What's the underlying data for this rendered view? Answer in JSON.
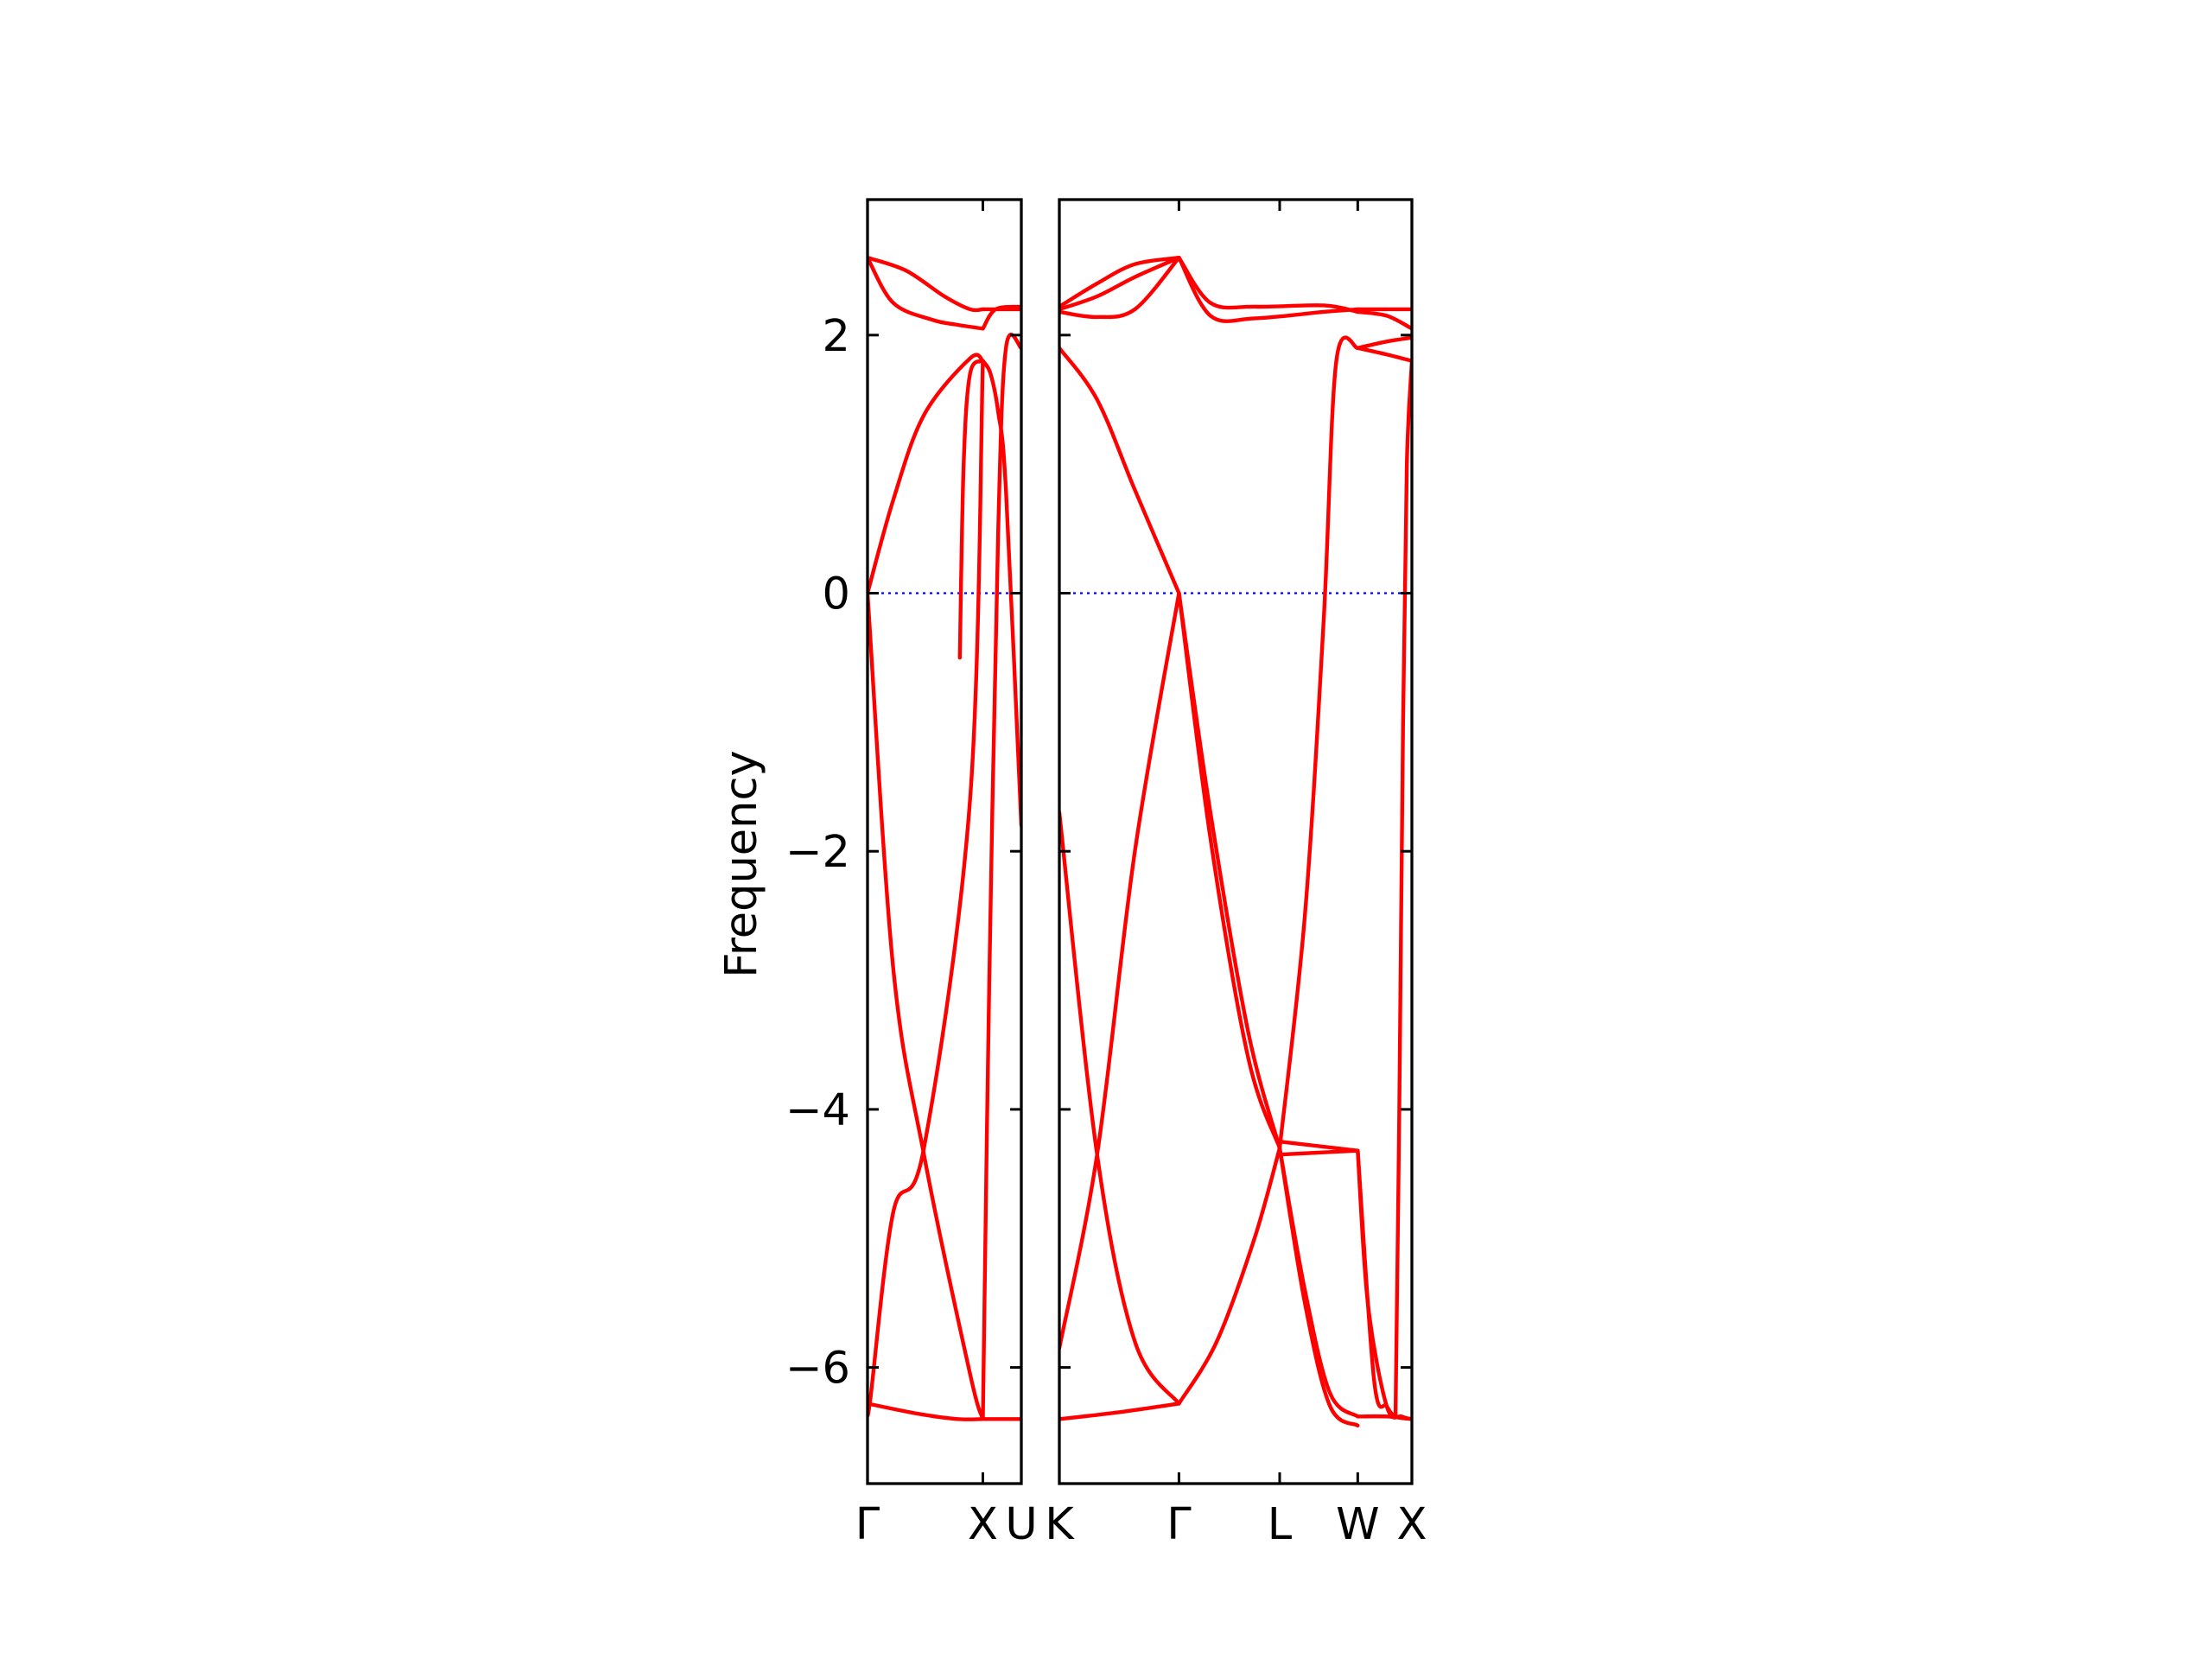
{
  "chart_data": {
    "type": "line",
    "title": "",
    "ylabel": "Frequency",
    "xlabel": "",
    "ylim": [
      -6.9,
      3.05
    ],
    "yticks": [
      -6,
      -4,
      -2,
      0,
      2
    ],
    "ytick_labels": [
      "−6",
      "−4",
      "−2",
      "0",
      "2"
    ],
    "grid": false,
    "colors": {
      "band": "#ff0000",
      "zero_line": "#0000ff",
      "frame": "#000000"
    },
    "panels": [
      {
        "xlim": [
          0,
          1.2
        ],
        "ticks": [
          {
            "x": 0,
            "label": "Γ"
          },
          {
            "x": 0.9,
            "label": "X"
          },
          {
            "x": 1.2,
            "label": "U"
          }
        ],
        "bands": [
          {
            "x": [
              0,
              0.2,
              0.44,
              0.8,
              0.9
            ],
            "y": [
              0,
              0.72,
              1.38,
              1.82,
              1.8
            ]
          },
          {
            "x": [
              0,
              0.2,
              0.44,
              0.8,
              0.9
            ],
            "y": [
              0,
              -2.9,
              -4.35,
              -6.05,
              -6.4
            ]
          },
          {
            "x": [
              0,
              0.02,
              0.2,
              0.44,
              0.8,
              0.9
            ],
            "y": [
              -6.28,
              -6.26,
              -4.8,
              -4.3,
              -1.6,
              1.8
            ]
          },
          {
            "x": [
              0,
              0.4,
              0.7,
              0.9
            ],
            "y": [
              -6.28,
              -6.36,
              -6.4,
              -6.4
            ]
          },
          {
            "x": [
              0,
              0.2,
              0.5,
              0.7,
              0.9
            ],
            "y": [
              2.6,
              2.25,
              2.12,
              2.08,
              2.05
            ]
          },
          {
            "x": [
              0,
              0.3,
              0.6,
              0.8,
              0.9
            ],
            "y": [
              2.6,
              2.5,
              2.3,
              2.2,
              2.2
            ]
          },
          {
            "x": [
              0.72,
              0.75,
              0.8,
              0.9
            ],
            "y": [
              -0.5,
              1.0,
              1.7,
              1.8
            ]
          },
          {
            "x": [
              0.9,
              0.96,
              1.02,
              1.08,
              1.2
            ],
            "y": [
              1.8,
              1.7,
              1.4,
              0.8,
              -1.8
            ]
          },
          {
            "x": [
              0.9,
              0.95,
              1.02,
              1.08,
              1.2
            ],
            "y": [
              -6.4,
              -3.0,
              0.5,
              1.9,
              1.9
            ]
          },
          {
            "x": [
              0.9,
              1.2
            ],
            "y": [
              -6.4,
              -6.4
            ]
          },
          {
            "x": [
              0.9,
              1.0,
              1.2
            ],
            "y": [
              2.05,
              2.2,
              2.22
            ]
          },
          {
            "x": [
              0.9,
              1.0,
              1.2
            ],
            "y": [
              2.2,
              2.2,
              2.2
            ]
          }
        ]
      },
      {
        "xlim": [
          0,
          2.8
        ],
        "ticks": [
          {
            "x": 0,
            "label": "K"
          },
          {
            "x": 0.95,
            "label": "Γ"
          },
          {
            "x": 1.75,
            "label": "L"
          },
          {
            "x": 2.37,
            "label": "W"
          },
          {
            "x": 2.8,
            "label": "X"
          }
        ],
        "bands": [
          {
            "x": [
              0,
              0.3,
              0.6,
              0.95
            ],
            "y": [
              1.9,
              1.5,
              0.8,
              0.0
            ]
          },
          {
            "x": [
              0,
              0.3,
              0.6,
              0.95
            ],
            "y": [
              -5.85,
              -4.35,
              -2.0,
              0.0
            ]
          },
          {
            "x": [
              0,
              0.3,
              0.6,
              0.95
            ],
            "y": [
              -1.7,
              -4.35,
              -5.8,
              -6.28
            ]
          },
          {
            "x": [
              0,
              0.45,
              0.95
            ],
            "y": [
              -6.4,
              -6.35,
              -6.28
            ]
          },
          {
            "x": [
              0.95,
              1.2,
              1.5,
              1.75
            ],
            "y": [
              0.0,
              -1.7,
              -3.4,
              -4.3
            ]
          },
          {
            "x": [
              0.95,
              1.2,
              1.5,
              1.75
            ],
            "y": [
              0.0,
              -1.9,
              -3.6,
              -4.3
            ]
          },
          {
            "x": [
              0.95,
              1.25,
              1.55,
              1.75
            ],
            "y": [
              -6.28,
              -5.8,
              -5.0,
              -4.3
            ]
          },
          {
            "x": [
              0,
              0.3,
              0.6,
              0.95
            ],
            "y": [
              2.18,
              2.14,
              2.2,
              2.6
            ]
          },
          {
            "x": [
              0,
              0.3,
              0.6,
              0.95
            ],
            "y": [
              2.2,
              2.3,
              2.45,
              2.6
            ]
          },
          {
            "x": [
              0,
              0.3,
              0.6,
              0.95
            ],
            "y": [
              2.22,
              2.4,
              2.55,
              2.6
            ]
          },
          {
            "x": [
              0.95,
              1.2,
              1.55,
              2.1,
              2.37
            ],
            "y": [
              2.6,
              2.15,
              2.13,
              2.18,
              2.2
            ]
          },
          {
            "x": [
              0.95,
              1.2,
              1.55,
              2.1,
              2.37
            ],
            "y": [
              2.6,
              2.25,
              2.22,
              2.23,
              2.18
            ]
          },
          {
            "x": [
              1.75,
              2.37
            ],
            "y": [
              -4.25,
              -4.32
            ]
          },
          {
            "x": [
              1.75,
              2.37
            ],
            "y": [
              -4.35,
              -4.32
            ]
          },
          {
            "x": [
              1.75,
              1.95,
              2.15,
              2.37
            ],
            "y": [
              -4.3,
              -5.4,
              -6.2,
              -6.38
            ]
          },
          {
            "x": [
              1.75,
              1.95,
              2.15,
              2.37
            ],
            "y": [
              -4.3,
              -5.5,
              -6.3,
              -6.45
            ]
          },
          {
            "x": [
              1.75,
              1.95,
              2.1,
              2.2,
              2.37
            ],
            "y": [
              -4.3,
              -2.5,
              -0.2,
              1.8,
              1.9
            ]
          },
          {
            "x": [
              2.37,
              2.6,
              2.8
            ],
            "y": [
              1.9,
              1.85,
              1.8
            ]
          },
          {
            "x": [
              2.37,
              2.6,
              2.8
            ],
            "y": [
              1.9,
              1.95,
              1.98
            ]
          },
          {
            "x": [
              2.37,
              2.5,
              2.6,
              2.67,
              2.8
            ],
            "y": [
              -4.32,
              -6.1,
              -6.3,
              -6.38,
              -6.4
            ]
          },
          {
            "x": [
              2.37,
              2.6,
              2.8
            ],
            "y": [
              -6.38,
              -6.38,
              -6.4
            ]
          },
          {
            "x": [
              2.37,
              2.45,
              2.6,
              2.72,
              2.8
            ],
            "y": [
              -4.32,
              -5.5,
              -6.3,
              -6.38,
              -6.4
            ]
          },
          {
            "x": [
              2.67,
              2.7,
              2.73,
              2.76,
              2.8
            ],
            "y": [
              -6.38,
              -4.0,
              -1.0,
              1.0,
              1.8
            ]
          },
          {
            "x": [
              2.37,
              2.6,
              2.8
            ],
            "y": [
              2.2,
              2.2,
              2.2
            ]
          },
          {
            "x": [
              2.37,
              2.6,
              2.8
            ],
            "y": [
              2.18,
              2.15,
              2.05
            ]
          }
        ]
      }
    ]
  }
}
